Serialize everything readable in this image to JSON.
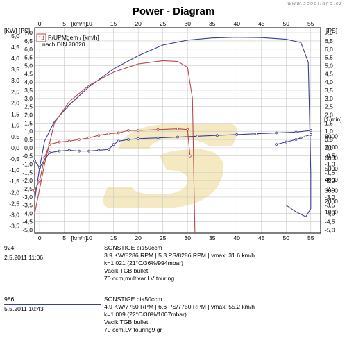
{
  "title": "Power - Diagram",
  "watermark": "www.scootland.cz",
  "legend": {
    "box_label": "14",
    "line1": "P/UPMgem / [km/h]",
    "line2": "nach DIN 70020"
  },
  "colors": {
    "blue": "#3b3f8f",
    "red": "#b84a4a",
    "grid": "#c8c8c8",
    "logo": "#f2e4b3"
  },
  "chart_data": {
    "type": "line",
    "title": "Power - Diagram",
    "x_unit_top": "[km/h]",
    "x_unit_bottom": "[km/h]",
    "y_unit_left_kw": "[KW]",
    "y_unit_left_ps": "[PS]",
    "y_unit_right_ps": "[PS]",
    "y_unit_right_rpm": "[1/min]",
    "x_ticks": [
      0,
      5,
      10,
      15,
      20,
      25,
      30,
      35,
      40,
      45,
      50,
      55
    ],
    "x_range": [
      -1,
      57
    ],
    "kw_ticks": [
      "5,0",
      "4,5",
      "4,0",
      "3,5",
      "3,0",
      "2,5",
      "2,0",
      "1,5",
      "1,0",
      "0,5",
      "0,0",
      "-0,5",
      "-1,0",
      "-1,5",
      "-2,0",
      "-2,5",
      "-3,0",
      "-3,5"
    ],
    "ps_ticks": [
      "7,0",
      "6,5",
      "6,0",
      "5,5",
      "5,0",
      "4,5",
      "4,0",
      "3,5",
      "3,0",
      "2,5",
      "2,0",
      "1,5",
      "1,0",
      "0,5",
      "0,0",
      "-0,5",
      "-1,0",
      "-1,5",
      "-2,0",
      "-2,5",
      "-3,0",
      "-3,5",
      "-4,0",
      "-4,5",
      "-5,0"
    ],
    "ps_range": [
      -5.2,
      7.3
    ],
    "rpm_ticks": [
      "8000",
      "7000",
      "6000",
      "5000",
      "4000",
      "3000",
      "2000",
      "1000"
    ],
    "grid": true,
    "series": [
      {
        "kind": "power",
        "color": "#3b3f8f",
        "points": [
          [
            -1,
            -3.2
          ],
          [
            0,
            -1.2
          ],
          [
            1,
            0.4
          ],
          [
            3,
            1.6
          ],
          [
            6,
            2.6
          ],
          [
            10,
            3.7
          ],
          [
            15,
            4.8
          ],
          [
            20,
            5.6
          ],
          [
            25,
            6.25
          ],
          [
            30,
            6.55
          ],
          [
            35,
            6.68
          ],
          [
            40,
            6.72
          ],
          [
            45,
            6.7
          ],
          [
            50,
            6.6
          ],
          [
            53,
            6.4
          ],
          [
            54.5,
            5.2
          ],
          [
            55,
            -1.5
          ],
          [
            55,
            -3.7
          ],
          [
            54,
            -4.2
          ],
          [
            52,
            -3.9
          ],
          [
            50,
            -3.5
          ]
        ]
      },
      {
        "kind": "power",
        "color": "#b84a4a",
        "points": [
          [
            -1,
            -4.0
          ],
          [
            1,
            -1.0
          ],
          [
            3,
            1.5
          ],
          [
            6,
            2.8
          ],
          [
            10,
            3.8
          ],
          [
            15,
            4.6
          ],
          [
            20,
            5.1
          ],
          [
            25,
            5.3
          ],
          [
            28,
            5.25
          ],
          [
            30,
            4.9
          ],
          [
            31,
            3.0
          ],
          [
            31.3,
            -2.0
          ],
          [
            31.5,
            -5.2
          ]
        ]
      },
      {
        "kind": "rpm",
        "color": "#3b3f8f",
        "points": [
          [
            -1,
            -0.8
          ],
          [
            0,
            -1.2
          ],
          [
            2,
            -0.3
          ],
          [
            4,
            -0.2
          ],
          [
            6,
            -0.15
          ],
          [
            8,
            -0.2
          ],
          [
            10,
            -0.2
          ],
          [
            12,
            -0.15
          ],
          [
            14,
            -0.1
          ],
          [
            15,
            0.2
          ],
          [
            16,
            0.4
          ],
          [
            18,
            0.5
          ],
          [
            20,
            0.55
          ],
          [
            24,
            0.6
          ],
          [
            28,
            0.65
          ],
          [
            32,
            0.7
          ],
          [
            36,
            0.75
          ],
          [
            40,
            0.8
          ],
          [
            44,
            0.85
          ],
          [
            48,
            0.9
          ],
          [
            52,
            0.95
          ],
          [
            55,
            1.05
          ]
        ]
      },
      {
        "kind": "rpm",
        "color": "#3b3f8f",
        "points": [
          [
            48,
            0.2
          ],
          [
            50,
            0.35
          ],
          [
            52,
            0.5
          ],
          [
            53,
            0.6
          ],
          [
            54,
            0.7
          ],
          [
            55,
            0.8
          ]
        ]
      },
      {
        "kind": "rpm",
        "color": "#b84a4a",
        "points": [
          [
            -1,
            -2.6
          ],
          [
            0,
            -2.0
          ],
          [
            1,
            -0.6
          ],
          [
            2,
            0.2
          ],
          [
            4,
            0.35
          ],
          [
            6,
            0.4
          ],
          [
            8,
            0.5
          ],
          [
            10,
            0.6
          ],
          [
            12,
            0.75
          ],
          [
            14,
            0.85
          ],
          [
            16,
            0.9
          ],
          [
            18,
            1.05
          ],
          [
            20,
            1.05
          ],
          [
            24,
            1.1
          ],
          [
            28,
            1.15
          ],
          [
            30,
            1.1
          ],
          [
            30.5,
            -0.5
          ]
        ]
      }
    ]
  },
  "runs": [
    {
      "number": "924",
      "date": "2.5.2011",
      "time": "11:06",
      "color": "#b84a4a",
      "line1_a": "SONSTIGE bis",
      "line1_b": "50ccm",
      "line2": "3.9 KW/8286 RPM  |  5.3 PS/8286 RPM  |  vmax: 31.6 km/h",
      "line3": "k=1,021 (21°C/36%/994mbar)",
      "line4": "Vacik TGB bullet",
      "line5": "70 ccm,multivar LV touring"
    },
    {
      "number": "986",
      "date": "5.5.2011",
      "time": "10:43",
      "color": "#3b3f8f",
      "line1_a": "SONSTIGE bis",
      "line1_b": "50ccm",
      "line2": "4.9 KW/7750 RPM  |  6.6 PS/7750 RPM  |  vmax: 55.2 km/h",
      "line3": "k=1,009 (22°C/30%/1007mbar)",
      "line4": "Vacik TGB bullet",
      "line5": "70 ccm,LV touring9 gr"
    }
  ]
}
